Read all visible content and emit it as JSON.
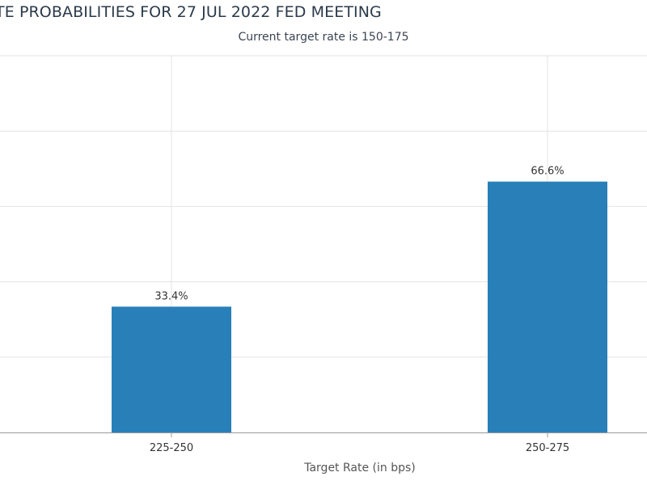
{
  "chart_data": {
    "type": "bar",
    "title": "TE PROBABILITIES FOR 27 JUL 2022 FED MEETING",
    "subtitle": "Current target rate is 150-175",
    "xlabel": "Target Rate (in bps)",
    "ylabel": "",
    "categories": [
      "225-250",
      "250-275"
    ],
    "values": [
      33.4,
      66.6
    ],
    "value_labels": [
      "33.4%",
      "66.6%"
    ],
    "ylim": [
      0,
      100
    ],
    "grid": true,
    "bar_color": "#2980b9",
    "grid_color": "#e3e3e3",
    "axis_color": "#999999"
  }
}
